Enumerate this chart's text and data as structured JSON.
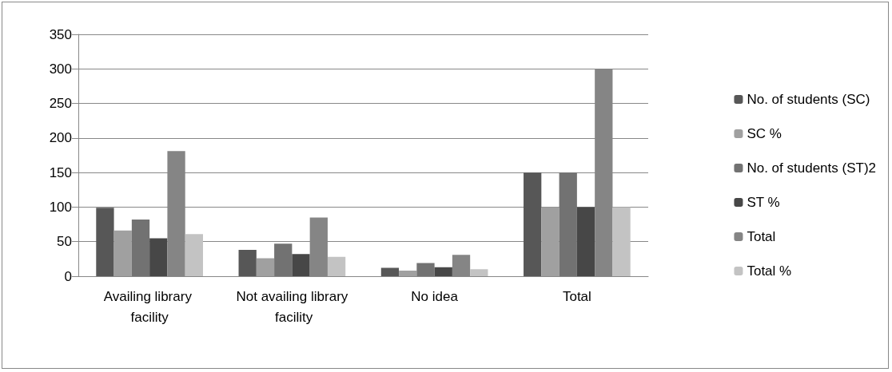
{
  "chart_data": {
    "type": "bar",
    "categories": [
      "Availing library facility",
      "Not availing library facility",
      "No idea",
      "Total"
    ],
    "series": [
      {
        "name": "No. of students (SC)",
        "color": "#575757",
        "values": [
          99,
          38,
          12,
          150
        ]
      },
      {
        "name": "SC %",
        "color": "#a0a0a0",
        "values": [
          66,
          26,
          8,
          100
        ]
      },
      {
        "name": "No. of students (ST)2",
        "color": "#727272",
        "values": [
          82,
          47,
          19,
          150
        ]
      },
      {
        "name": "ST %",
        "color": "#474747",
        "values": [
          55,
          32,
          13,
          100
        ]
      },
      {
        "name": "Total",
        "color": "#858585",
        "values": [
          181,
          85,
          31,
          300
        ]
      },
      {
        "name": "Total %",
        "color": "#c3c3c3",
        "values": [
          61,
          28,
          10,
          100
        ]
      }
    ],
    "ylim": [
      0,
      350
    ],
    "yticks": [
      0,
      50,
      100,
      150,
      200,
      250,
      300,
      350
    ],
    "grid": "y",
    "legend": "right"
  }
}
